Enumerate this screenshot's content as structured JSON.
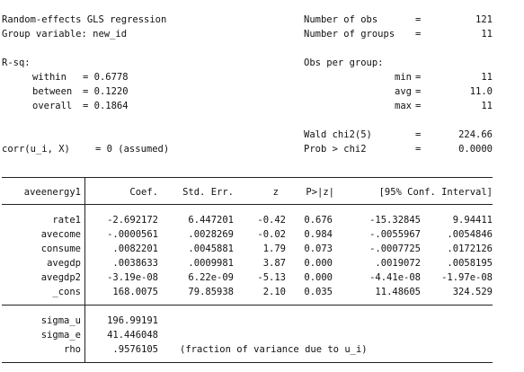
{
  "header": {
    "title": "Random-effects GLS regression",
    "group_variable": "Group variable: new_id",
    "rsq_label": "R-sq:",
    "within_label": "within",
    "within_value": "= 0.6778",
    "between_label": "between",
    "between_value": "= 0.1220",
    "overall_label": "overall",
    "overall_value": "= 0.1864",
    "corr_label": "corr(u_i, X)",
    "corr_value": "= 0 (assumed)",
    "nobs_label": "Number of obs",
    "nobs_value": "121",
    "ngroups_label": "Number of groups",
    "ngroups_value": "11",
    "obs_per_group_label": "Obs per group:",
    "min_label": "min",
    "min_value": "11",
    "avg_label": "avg",
    "avg_value": "11.0",
    "max_label": "max",
    "max_value": "11",
    "wald_label": "Wald chi2(5)",
    "wald_value": "224.66",
    "prob_label": "Prob > chi2",
    "prob_value": "0.0000",
    "eq": "="
  },
  "table": {
    "columns": [
      "aveenergy1",
      "Coef.",
      "Std. Err.",
      "z",
      "P>|z|",
      "[95% Conf. Interval]"
    ],
    "rows": [
      {
        "name": "rate1",
        "coef": "-2.692172",
        "se": "6.447201",
        "z": "-0.42",
        "p": "0.676",
        "lo": "-15.32845",
        "hi": "9.94411"
      },
      {
        "name": "avecome",
        "coef": "-.0000561",
        "se": ".0028269",
        "z": "-0.02",
        "p": "0.984",
        "lo": "-.0055967",
        "hi": ".0054846"
      },
      {
        "name": "consume",
        "coef": ".0082201",
        "se": ".0045881",
        "z": "1.79",
        "p": "0.073",
        "lo": "-.0007725",
        "hi": ".0172126"
      },
      {
        "name": "avegdp",
        "coef": ".0038633",
        "se": ".0009981",
        "z": "3.87",
        "p": "0.000",
        "lo": ".0019072",
        "hi": ".0058195"
      },
      {
        "name": "avegdp2",
        "coef": "-3.19e-08",
        "se": "6.22e-09",
        "z": "-5.13",
        "p": "0.000",
        "lo": "-4.41e-08",
        "hi": "-1.97e-08"
      },
      {
        "name": "_cons",
        "coef": "168.0075",
        "se": "79.85938",
        "z": "2.10",
        "p": "0.035",
        "lo": "11.48605",
        "hi": "324.529"
      }
    ],
    "variance": [
      {
        "name": "sigma_u",
        "value": "196.99191",
        "note": ""
      },
      {
        "name": "sigma_e",
        "value": "41.446048",
        "note": ""
      },
      {
        "name": "rho",
        "value": ".9576105",
        "note": "(fraction of variance due to u_i)"
      }
    ]
  }
}
